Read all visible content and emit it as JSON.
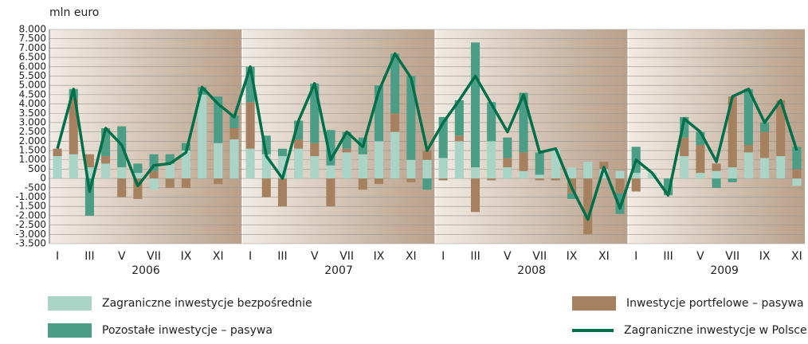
{
  "chart_data": {
    "type": "bar",
    "stacked": true,
    "y_label": "mln euro",
    "categories": [
      "I",
      null,
      "III",
      null,
      "V",
      null,
      "VII",
      null,
      "IX",
      null,
      "XI",
      null,
      "I",
      null,
      "III",
      null,
      "V",
      null,
      "VII",
      null,
      "IX",
      null,
      "XI",
      null,
      "I",
      null,
      "III",
      null,
      "V",
      null,
      "VII",
      null,
      "IX",
      null,
      "XI",
      null,
      "I",
      null,
      "III",
      null,
      "V",
      null,
      "VII",
      null,
      "IX",
      null,
      "XI"
    ],
    "years": [
      "2006",
      "2007",
      "2008",
      "2009"
    ],
    "ylim": [
      -3500,
      8000
    ],
    "yticks": [
      {
        "value": 8000,
        "label": "8.000"
      },
      {
        "value": 7500,
        "label": "7.500"
      },
      {
        "value": 7000,
        "label": "7.000"
      },
      {
        "value": 6500,
        "label": "6.500"
      },
      {
        "value": 6000,
        "label": "6.000"
      },
      {
        "value": 5500,
        "label": "5.500"
      },
      {
        "value": 5000,
        "label": "5.000"
      },
      {
        "value": 4500,
        "label": "4.500"
      },
      {
        "value": 4000,
        "label": "4.000"
      },
      {
        "value": 3500,
        "label": "3.500"
      },
      {
        "value": 3000,
        "label": "3.000"
      },
      {
        "value": 2500,
        "label": "2.500"
      },
      {
        "value": 2000,
        "label": "2.000"
      },
      {
        "value": 1500,
        "label": "1.500"
      },
      {
        "value": 1000,
        "label": "1.000"
      },
      500,
      0,
      -500,
      {
        "value": -1000,
        "label": "-1.000"
      },
      {
        "value": -1500,
        "label": "-1.500"
      },
      {
        "value": -2000,
        "label": "-2.000"
      },
      {
        "value": -2500,
        "label": "-2.500"
      },
      {
        "value": -3000,
        "label": "-3.000"
      },
      {
        "value": -3500,
        "label": "-3.500"
      }
    ],
    "grid": true,
    "series": [
      {
        "name": "Zagraniczne inwestycje bezpośrednie",
        "color": "#a9d4c6",
        "values": [
          1200,
          1300,
          600,
          800,
          600,
          300,
          -600,
          800,
          1500,
          4500,
          1900,
          2100,
          1600,
          1300,
          1200,
          1600,
          1200,
          700,
          1400,
          1300,
          2000,
          2500,
          1000,
          1000,
          1100,
          2000,
          600,
          2000,
          600,
          400,
          200,
          1600,
          600,
          900,
          500,
          400,
          300,
          300,
          0,
          1200,
          300,
          400,
          600,
          1400,
          1100,
          1200,
          -400
        ]
      },
      {
        "name": "Inwestycje portfelowe – pasywa",
        "color": "#a6815f",
        "values": [
          400,
          3000,
          700,
          400,
          -1000,
          -1100,
          400,
          -500,
          -500,
          0,
          -300,
          600,
          2500,
          -1000,
          -1500,
          500,
          700,
          -1500,
          200,
          -600,
          -300,
          1000,
          -200,
          500,
          -100,
          300,
          -1800,
          -100,
          500,
          1000,
          -100,
          -100,
          -800,
          -3000,
          400,
          -800,
          -700,
          0,
          0,
          1000,
          1500,
          400,
          3800,
          400,
          1400,
          3000,
          500
        ]
      },
      {
        "name": "Pozostałe inwestycje – pasywa",
        "color": "#4b9d86",
        "values": [
          0,
          500,
          -2000,
          1500,
          2200,
          500,
          900,
          500,
          400,
          400,
          2500,
          700,
          1900,
          1000,
          400,
          1000,
          3200,
          1900,
          900,
          900,
          3000,
          3200,
          4500,
          -600,
          2200,
          1900,
          6700,
          2100,
          1100,
          3200,
          1200,
          0,
          -300,
          0,
          0,
          -1100,
          1400,
          0,
          -900,
          1100,
          700,
          -500,
          -200,
          3000,
          500,
          0,
          1200
        ]
      }
    ],
    "line": {
      "name": "Zagraniczne inwestycje w Polsce",
      "color": "#00704a",
      "values": [
        1600,
        4800,
        -700,
        2700,
        1800,
        -400,
        700,
        800,
        1400,
        4900,
        4000,
        3300,
        6000,
        1200,
        0,
        3100,
        5100,
        1000,
        2500,
        1700,
        4700,
        6700,
        5400,
        1500,
        3000,
        4200,
        5500,
        4000,
        2500,
        4500,
        1400,
        1600,
        -500,
        -2200,
        600,
        -1600,
        1000,
        300,
        -900,
        3200,
        2500,
        900,
        4400,
        4800,
        3000,
        4200,
        1500
      ]
    }
  }
}
